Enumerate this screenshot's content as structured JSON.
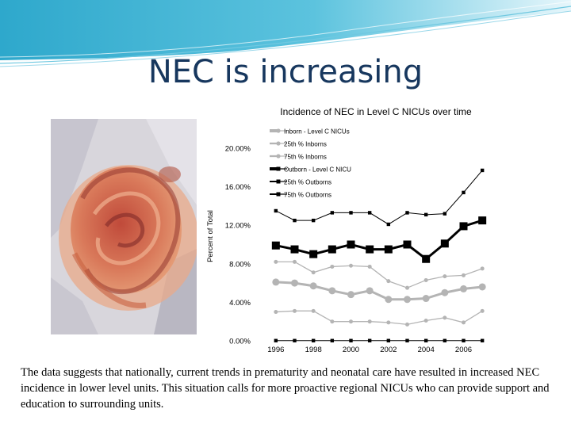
{
  "slide": {
    "title": "NEC is increasing",
    "caption": "The data suggests that nationally, current trends in prematurity and neonatal care have resulted in increased NEC incidence in lower level units. This situation calls for more proactive regional NICUs who can provide support and education to surrounding units.",
    "colors": {
      "banner": "#43b7d6",
      "title": "#17375e"
    }
  },
  "chart_data": {
    "type": "line",
    "title": "Incidence of NEC in Level C NICUs over time",
    "xlabel": "",
    "ylabel": "Percent of Total",
    "x": [
      1996,
      1997,
      1998,
      1999,
      2000,
      2001,
      2002,
      2003,
      2004,
      2005,
      2006,
      2007
    ],
    "xticks": [
      1996,
      1998,
      2000,
      2002,
      2004,
      2006
    ],
    "xtick_labels": [
      "1996",
      "1998",
      "2000",
      "2002",
      "2004",
      "2006"
    ],
    "ylim": [
      0,
      20
    ],
    "yticks": [
      0,
      4,
      8,
      12,
      16,
      20
    ],
    "ytick_labels": [
      "0.00%",
      "4.00%",
      "8.00%",
      "12.00%",
      "16.00%",
      "20.00%"
    ],
    "legend_position": "top-right",
    "series": [
      {
        "name": "Inborn - Level C NICUs",
        "color": "#b4b4b4",
        "marker": "circle",
        "size": 4.5,
        "width": 3,
        "values": [
          6.1,
          6.0,
          5.7,
          5.2,
          4.8,
          5.2,
          4.3,
          4.3,
          4.4,
          5.0,
          5.4,
          5.6
        ]
      },
      {
        "name": "25th % Inborns",
        "color": "#b4b4b4",
        "marker": "circle",
        "size": 2.5,
        "width": 1.3,
        "values": [
          3.0,
          3.1,
          3.1,
          2.0,
          2.0,
          2.0,
          1.9,
          1.7,
          2.1,
          2.4,
          1.9,
          3.1
        ]
      },
      {
        "name": "75th % Inborns",
        "color": "#b4b4b4",
        "marker": "circle",
        "size": 2.5,
        "width": 1.3,
        "values": [
          8.2,
          8.2,
          7.1,
          7.7,
          7.8,
          7.7,
          6.2,
          5.5,
          6.3,
          6.7,
          6.8,
          7.5
        ]
      },
      {
        "name": "Outborn - Level C NICU",
        "color": "#000000",
        "marker": "square",
        "size": 5,
        "width": 3,
        "values": [
          9.9,
          9.5,
          9.0,
          9.5,
          10.0,
          9.5,
          9.5,
          10.0,
          8.5,
          10.1,
          11.9,
          12.5
        ]
      },
      {
        "name": "25th % Outborns",
        "color": "#000000",
        "marker": "square",
        "size": 2.2,
        "width": 1,
        "values": [
          0.02,
          0.02,
          0.02,
          0.02,
          0.02,
          0.02,
          0.02,
          0.02,
          0.02,
          0.02,
          0.02,
          0.02
        ]
      },
      {
        "name": "75th % Outborns",
        "color": "#000000",
        "marker": "square",
        "size": 2.2,
        "width": 1,
        "values": [
          13.5,
          12.5,
          12.5,
          13.3,
          13.3,
          13.3,
          12.1,
          13.3,
          13.1,
          13.2,
          15.4,
          17.7
        ]
      }
    ]
  }
}
